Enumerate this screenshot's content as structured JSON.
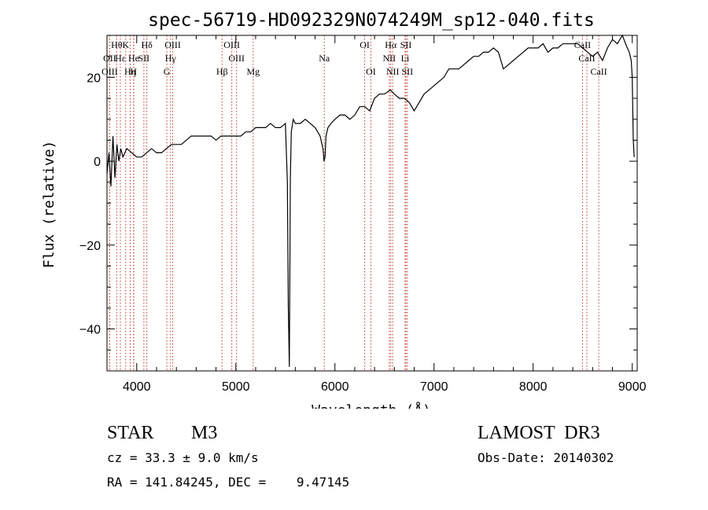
{
  "chart_data": {
    "type": "line",
    "title": "spec-56719-HD092329N074249M_sp12-040.fits",
    "xlabel": "Wavelength (Å)",
    "ylabel": "Flux (relative)",
    "xlim": [
      3700,
      9050
    ],
    "ylim": [
      -50,
      30
    ],
    "x_ticks": [
      4000,
      5000,
      6000,
      7000,
      8000,
      9000
    ],
    "y_ticks": [
      -40,
      -20,
      0,
      20
    ],
    "grid": false,
    "series": [
      {
        "x": [
          3700,
          3720,
          3740,
          3760,
          3780,
          3800,
          3820,
          3840,
          3860,
          3880,
          3900,
          3950,
          4000,
          4050,
          4100,
          4150,
          4200,
          4250,
          4300,
          4350,
          4400,
          4450,
          4500,
          4550,
          4600,
          4650,
          4700,
          4750,
          4800,
          4850,
          4900,
          4950,
          5000,
          5050,
          5100,
          5150,
          5200,
          5250,
          5300,
          5350,
          5400,
          5450,
          5500,
          5520,
          5530,
          5540,
          5550,
          5560,
          5580,
          5600,
          5650,
          5700,
          5750,
          5800,
          5850,
          5880,
          5890,
          5900,
          5910,
          5930,
          5960,
          6000,
          6050,
          6100,
          6150,
          6200,
          6250,
          6300,
          6350,
          6400,
          6450,
          6500,
          6560,
          6600,
          6650,
          6700,
          6750,
          6800,
          6850,
          6900,
          6950,
          7000,
          7050,
          7100,
          7150,
          7200,
          7250,
          7300,
          7350,
          7400,
          7450,
          7500,
          7550,
          7600,
          7650,
          7700,
          7750,
          7800,
          7850,
          7900,
          7950,
          8000,
          8050,
          8100,
          8150,
          8200,
          8250,
          8300,
          8350,
          8400,
          8450,
          8500,
          8550,
          8600,
          8650,
          8700,
          8750,
          8800,
          8850,
          8900,
          8950,
          8970,
          8990,
          9000,
          9010,
          9020
        ],
        "y": [
          -3,
          2,
          -6,
          6,
          -4,
          4,
          0,
          3,
          1,
          2,
          3,
          2,
          1,
          1,
          2,
          3,
          2,
          2,
          3,
          4,
          4,
          4,
          5,
          6,
          6,
          6,
          6,
          6,
          5,
          6,
          6,
          6,
          6,
          6,
          7,
          7,
          8,
          8,
          8,
          9,
          8,
          8,
          9,
          -5,
          -35,
          -49,
          -4,
          7,
          10,
          9,
          9,
          10,
          9,
          8,
          6,
          3,
          0,
          1,
          6,
          8,
          9,
          10,
          11,
          11,
          10,
          11,
          13,
          13,
          12,
          15,
          16,
          16,
          17,
          16,
          15,
          15,
          14,
          12,
          14,
          16,
          17,
          18,
          19,
          20,
          22,
          22,
          22,
          23,
          24,
          25,
          25,
          26,
          26,
          27,
          26,
          22,
          23,
          24,
          25,
          26,
          27,
          27,
          27,
          28,
          26,
          27,
          27,
          28,
          28,
          28,
          28,
          27,
          26,
          25,
          26,
          24,
          27,
          29,
          28,
          30,
          27,
          26,
          24,
          20,
          5,
          1
        ]
      }
    ],
    "line_markers": [
      {
        "label": "Hθ",
        "x": 3798,
        "row": 0
      },
      {
        "label": "OII",
        "x": 3727,
        "row": 1
      },
      {
        "label": "OIII",
        "x": 3727,
        "row": 2
      },
      {
        "label": "Hε",
        "x": 3835,
        "row": 1
      },
      {
        "label": "K",
        "x": 3889,
        "row": 0
      },
      {
        "label": "Hη",
        "x": 3934,
        "row": 2
      },
      {
        "label": "He",
        "x": 3970,
        "row": 1
      },
      {
        "label": "H",
        "x": 3968,
        "row": 2
      },
      {
        "label": "Hδ",
        "x": 4102,
        "row": 0
      },
      {
        "label": "SII",
        "x": 4072,
        "row": 1
      },
      {
        "label": "OIII",
        "x": 4363,
        "row": 0
      },
      {
        "label": "Hγ",
        "x": 4341,
        "row": 1
      },
      {
        "label": "G",
        "x": 4304,
        "row": 2
      },
      {
        "label": "OIII",
        "x": 4959,
        "row": 0
      },
      {
        "label": "OIII",
        "x": 5007,
        "row": 1
      },
      {
        "label": "Hβ",
        "x": 4861,
        "row": 2
      },
      {
        "label": "Mg",
        "x": 5175,
        "row": 2
      },
      {
        "label": "Na",
        "x": 5893,
        "row": 1
      },
      {
        "label": "OI",
        "x": 6300,
        "row": 0
      },
      {
        "label": "OI",
        "x": 6363,
        "row": 2
      },
      {
        "label": "Hα",
        "x": 6563,
        "row": 0
      },
      {
        "label": "SII",
        "x": 6716,
        "row": 0
      },
      {
        "label": "NII",
        "x": 6548,
        "row": 1
      },
      {
        "label": "Li",
        "x": 6708,
        "row": 1
      },
      {
        "label": "NII",
        "x": 6583,
        "row": 2
      },
      {
        "label": "SII",
        "x": 6731,
        "row": 2
      },
      {
        "label": "CaII",
        "x": 8498,
        "row": 0
      },
      {
        "label": "CaII",
        "x": 8542,
        "row": 1
      },
      {
        "label": "CaII",
        "x": 8662,
        "row": 2
      }
    ]
  },
  "info": {
    "object_class": "STAR",
    "subclass": "M3",
    "survey": "LAMOST  DR3",
    "cz": "cz = 33.3 ± 9.0 km/s",
    "obs_date": "Obs-Date: 20140302",
    "radec": "RA = 141.84245, DEC =    9.47145"
  }
}
